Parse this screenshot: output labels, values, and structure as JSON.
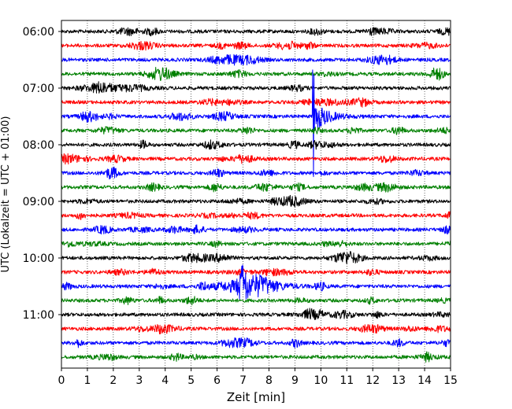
{
  "chart_data": {
    "type": "line",
    "title": "",
    "xlabel": "Zeit  [min]",
    "ylabel": "UTC (Lokalzeit = UTC + 01:00)",
    "xlim": [
      0,
      15
    ],
    "x_ticks": [
      "0",
      "1",
      "2",
      "3",
      "4",
      "5",
      "6",
      "7",
      "8",
      "9",
      "10",
      "11",
      "12",
      "13",
      "14",
      "15"
    ],
    "y_ticks": [
      "06:00",
      "07:00",
      "08:00",
      "09:00",
      "10:00",
      "11:00"
    ],
    "trace_interval_minutes": 15,
    "first_trace": "06:00",
    "grid": "vertical dotted at each minute",
    "colors_cycle": [
      "#000000",
      "#ff0000",
      "#0000ff",
      "#008000"
    ],
    "traces": [
      {
        "start": "06:00",
        "color": "#000000"
      },
      {
        "start": "06:15",
        "color": "#ff0000"
      },
      {
        "start": "06:30",
        "color": "#0000ff"
      },
      {
        "start": "06:45",
        "color": "#008000"
      },
      {
        "start": "07:00",
        "color": "#000000"
      },
      {
        "start": "07:15",
        "color": "#ff0000"
      },
      {
        "start": "07:30",
        "color": "#0000ff",
        "event_at_min": 9.7
      },
      {
        "start": "07:45",
        "color": "#008000"
      },
      {
        "start": "08:00",
        "color": "#000000"
      },
      {
        "start": "08:15",
        "color": "#ff0000"
      },
      {
        "start": "08:30",
        "color": "#0000ff"
      },
      {
        "start": "08:45",
        "color": "#008000"
      },
      {
        "start": "09:00",
        "color": "#000000"
      },
      {
        "start": "09:15",
        "color": "#ff0000"
      },
      {
        "start": "09:30",
        "color": "#0000ff"
      },
      {
        "start": "09:45",
        "color": "#008000"
      },
      {
        "start": "10:00",
        "color": "#000000"
      },
      {
        "start": "10:15",
        "color": "#ff0000"
      },
      {
        "start": "10:30",
        "color": "#0000ff",
        "event_at_min": 7.0
      },
      {
        "start": "10:45",
        "color": "#008000"
      },
      {
        "start": "11:00",
        "color": "#000000"
      },
      {
        "start": "11:15",
        "color": "#ff0000"
      },
      {
        "start": "11:30",
        "color": "#0000ff"
      },
      {
        "start": "11:45",
        "color": "#008000"
      }
    ]
  }
}
